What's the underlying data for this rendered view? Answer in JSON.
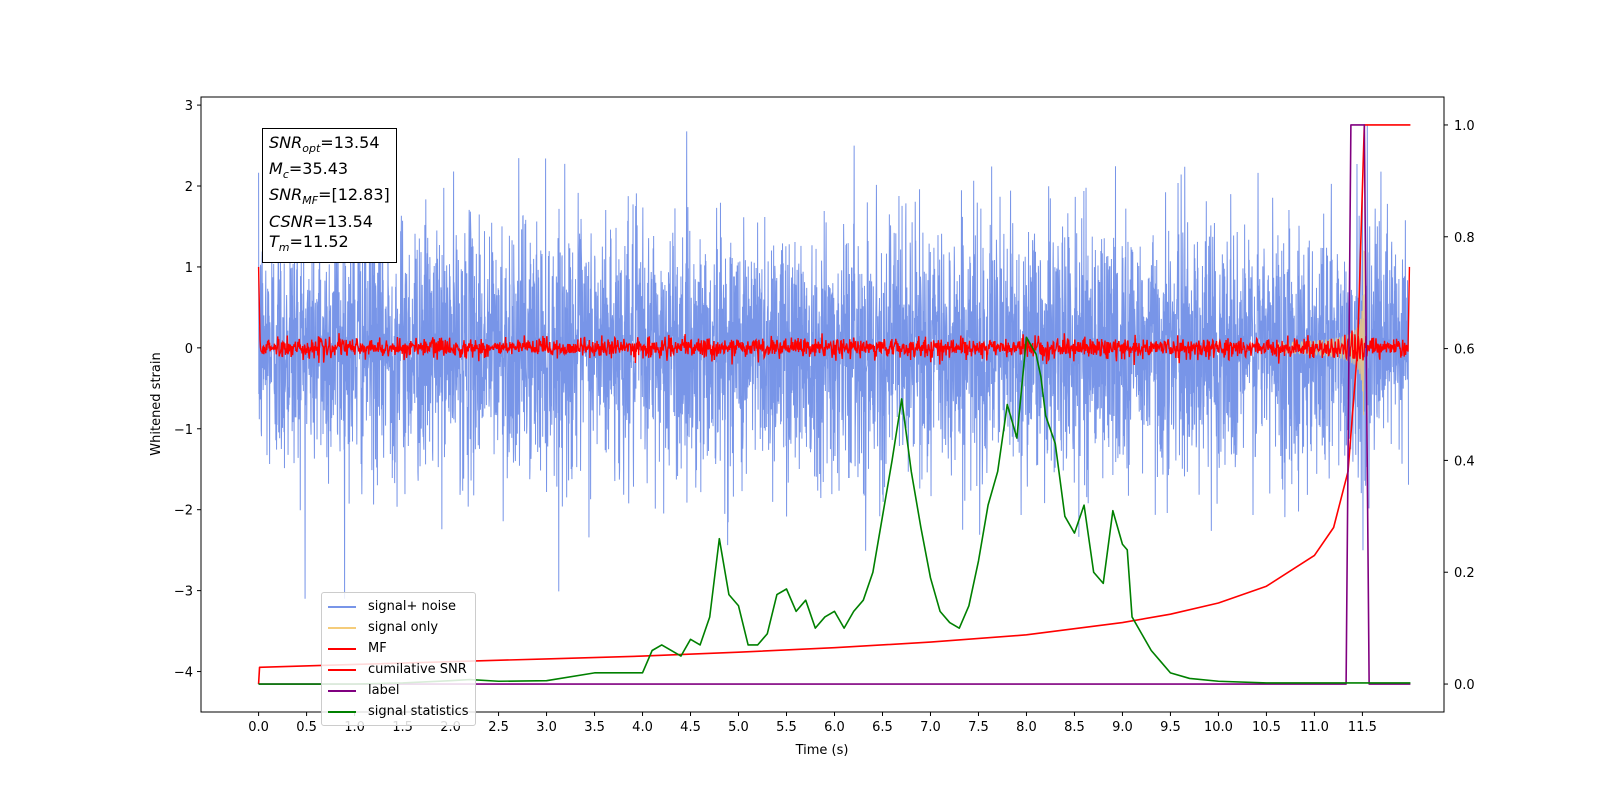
{
  "chart_data": {
    "type": "line",
    "xlabel": "Time (s)",
    "ylabel_left": "Whitened strain",
    "ylabel_right": "",
    "xlim": [
      -0.6,
      12.35
    ],
    "ylim_left": [
      -4.5,
      3.1
    ],
    "ylim_right": [
      -0.05,
      1.05
    ],
    "x_ticks": [
      "0.0",
      "0.5",
      "1.0",
      "1.5",
      "2.0",
      "2.5",
      "3.0",
      "3.5",
      "4.0",
      "4.5",
      "5.0",
      "5.5",
      "6.0",
      "6.5",
      "7.0",
      "7.5",
      "8.0",
      "8.5",
      "9.0",
      "9.5",
      "10.0",
      "10.5",
      "11.0",
      "11.5"
    ],
    "y_ticks_left": [
      "3",
      "2",
      "1",
      "0",
      "−1",
      "−2",
      "−3",
      "−4"
    ],
    "y_ticks_right": [
      "1.0",
      "0.8",
      "0.6",
      "0.4",
      "0.2",
      "0.0"
    ],
    "grid": false,
    "legend_position": "lower-left",
    "stats": {
      "snr_opt": "=13.54",
      "mc": "=35.43",
      "snr_mf": "=[12.83]",
      "csnr": "=13.54",
      "tm": "=11.52"
    },
    "series": [
      {
        "name": "signal+ noise",
        "color": "#7895e8",
        "axis": "left",
        "noise_std": 0.78,
        "x_range": [
          0,
          11.98
        ]
      },
      {
        "name": "signal only",
        "color": "#f5cc7a",
        "axis": "left",
        "chirp_end": 11.52,
        "amp_max": 1.2
      },
      {
        "name": "MF",
        "color": "#ff0000",
        "axis": "left",
        "noise_std": 0.06,
        "start_value": 1.0,
        "end_value": 1.0
      },
      {
        "name": "cumilative SNR",
        "color": "#ff0000",
        "axis": "right",
        "x": [
          0.0,
          0.01,
          1,
          2,
          3,
          4,
          5,
          6,
          7,
          8,
          9,
          9.5,
          10,
          10.5,
          11,
          11.2,
          11.35,
          11.45,
          11.52,
          11.6,
          12.0
        ],
        "y": [
          0.0,
          0.03,
          0.035,
          0.04,
          0.045,
          0.05,
          0.057,
          0.065,
          0.075,
          0.088,
          0.11,
          0.125,
          0.145,
          0.175,
          0.23,
          0.28,
          0.38,
          0.6,
          1.0,
          1.0,
          1.0
        ]
      },
      {
        "name": "label",
        "color": "#800080",
        "axis": "right",
        "x": [
          0.0,
          11.33,
          11.38,
          11.52,
          11.57,
          12.0
        ],
        "y": [
          0.0,
          0.0,
          1.0,
          1.0,
          0.0,
          0.0
        ]
      },
      {
        "name": "signal statistics",
        "color": "#008000",
        "axis": "right",
        "x": [
          0.0,
          0.5,
          1.0,
          1.5,
          2.0,
          2.2,
          2.5,
          3.0,
          3.5,
          4.0,
          4.1,
          4.2,
          4.4,
          4.5,
          4.6,
          4.7,
          4.8,
          4.9,
          5.0,
          5.1,
          5.2,
          5.3,
          5.4,
          5.5,
          5.6,
          5.7,
          5.8,
          5.9,
          6.0,
          6.1,
          6.2,
          6.3,
          6.4,
          6.5,
          6.6,
          6.7,
          6.8,
          6.9,
          7.0,
          7.1,
          7.2,
          7.3,
          7.4,
          7.5,
          7.6,
          7.7,
          7.8,
          7.9,
          8.0,
          8.1,
          8.15,
          8.2,
          8.3,
          8.4,
          8.5,
          8.6,
          8.7,
          8.8,
          8.9,
          9.0,
          9.05,
          9.1,
          9.2,
          9.3,
          9.4,
          9.5,
          9.7,
          10.0,
          10.5,
          11.0,
          11.5,
          12.0
        ],
        "y": [
          0.0,
          0.0,
          0.0,
          0.002,
          0.006,
          0.008,
          0.005,
          0.006,
          0.02,
          0.02,
          0.06,
          0.07,
          0.05,
          0.08,
          0.07,
          0.12,
          0.26,
          0.16,
          0.14,
          0.07,
          0.07,
          0.09,
          0.16,
          0.17,
          0.13,
          0.15,
          0.1,
          0.12,
          0.13,
          0.1,
          0.13,
          0.15,
          0.2,
          0.3,
          0.4,
          0.51,
          0.38,
          0.28,
          0.19,
          0.13,
          0.11,
          0.1,
          0.14,
          0.22,
          0.32,
          0.38,
          0.5,
          0.44,
          0.62,
          0.59,
          0.55,
          0.48,
          0.43,
          0.3,
          0.27,
          0.32,
          0.2,
          0.18,
          0.31,
          0.25,
          0.24,
          0.12,
          0.09,
          0.06,
          0.04,
          0.02,
          0.01,
          0.005,
          0.002,
          0.002,
          0.002,
          0.002
        ]
      }
    ]
  }
}
